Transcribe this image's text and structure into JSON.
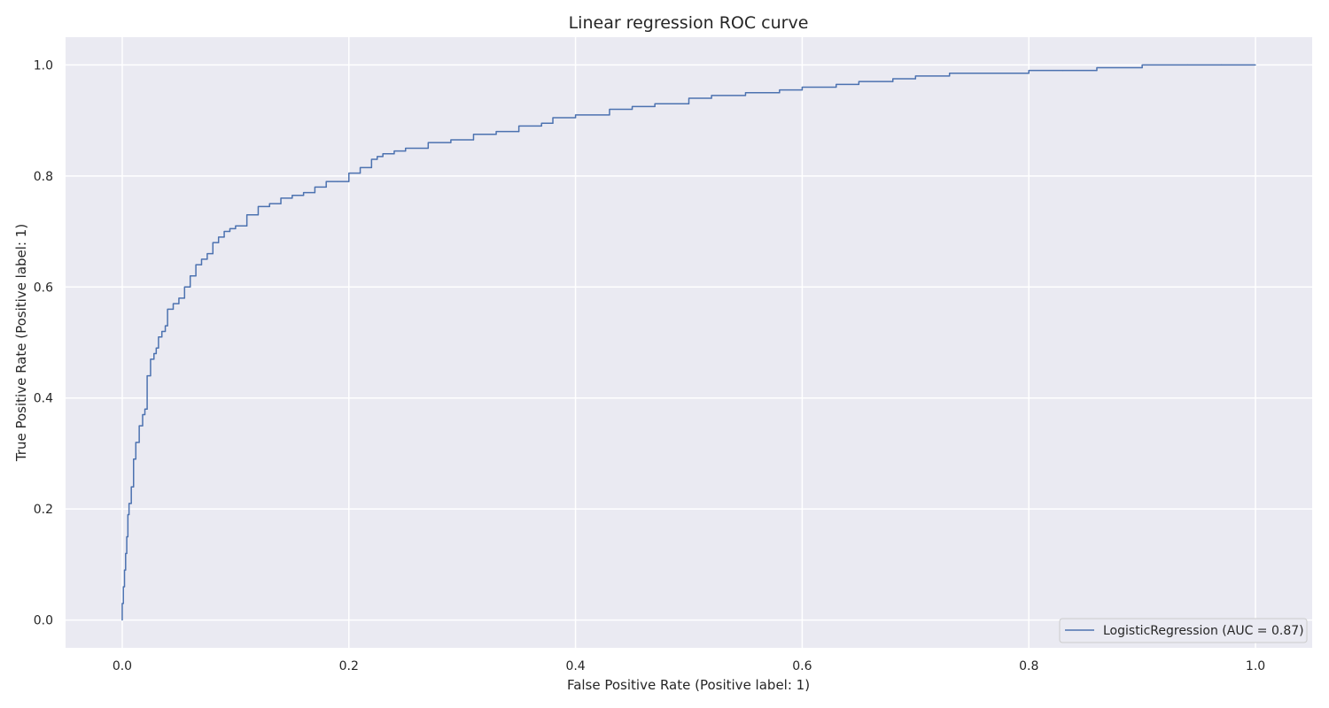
{
  "chart_data": {
    "type": "line",
    "title": "Linear regression ROC curve",
    "xlabel": "False Positive Rate (Positive label: 1)",
    "ylabel": "True Positive Rate (Positive label: 1)",
    "xlim": [
      -0.05,
      1.05
    ],
    "ylim": [
      -0.05,
      1.05
    ],
    "xticks": [
      "0.0",
      "0.2",
      "0.4",
      "0.6",
      "0.8",
      "1.0"
    ],
    "yticks": [
      "0.0",
      "0.2",
      "0.4",
      "0.6",
      "0.8",
      "1.0"
    ],
    "grid": true,
    "legend_position": "lower-right",
    "series": [
      {
        "name": "LogisticRegression (AUC = 0.87)",
        "color": "#4c72b0",
        "x": [
          0.0,
          0.001,
          0.002,
          0.003,
          0.004,
          0.005,
          0.006,
          0.008,
          0.01,
          0.012,
          0.015,
          0.018,
          0.02,
          0.022,
          0.025,
          0.028,
          0.03,
          0.032,
          0.035,
          0.038,
          0.04,
          0.045,
          0.05,
          0.055,
          0.06,
          0.065,
          0.07,
          0.075,
          0.08,
          0.085,
          0.09,
          0.095,
          0.1,
          0.11,
          0.12,
          0.13,
          0.14,
          0.15,
          0.16,
          0.17,
          0.18,
          0.19,
          0.2,
          0.21,
          0.22,
          0.225,
          0.23,
          0.24,
          0.25,
          0.27,
          0.29,
          0.31,
          0.33,
          0.35,
          0.37,
          0.38,
          0.4,
          0.43,
          0.45,
          0.47,
          0.5,
          0.52,
          0.55,
          0.58,
          0.6,
          0.63,
          0.65,
          0.68,
          0.7,
          0.73,
          0.75,
          0.8,
          0.83,
          0.86,
          0.9,
          0.94,
          0.97,
          1.0
        ],
        "y": [
          0.0,
          0.03,
          0.06,
          0.09,
          0.12,
          0.15,
          0.19,
          0.21,
          0.24,
          0.29,
          0.32,
          0.35,
          0.37,
          0.38,
          0.44,
          0.47,
          0.48,
          0.49,
          0.51,
          0.52,
          0.53,
          0.56,
          0.57,
          0.58,
          0.6,
          0.62,
          0.64,
          0.65,
          0.66,
          0.68,
          0.69,
          0.7,
          0.705,
          0.71,
          0.73,
          0.745,
          0.75,
          0.76,
          0.765,
          0.77,
          0.78,
          0.79,
          0.79,
          0.805,
          0.815,
          0.83,
          0.835,
          0.84,
          0.845,
          0.85,
          0.86,
          0.865,
          0.875,
          0.88,
          0.89,
          0.895,
          0.905,
          0.91,
          0.92,
          0.925,
          0.93,
          0.94,
          0.945,
          0.95,
          0.955,
          0.96,
          0.965,
          0.97,
          0.975,
          0.98,
          0.985,
          0.985,
          0.99,
          0.99,
          0.995,
          1.0,
          1.0,
          1.0
        ]
      }
    ]
  }
}
